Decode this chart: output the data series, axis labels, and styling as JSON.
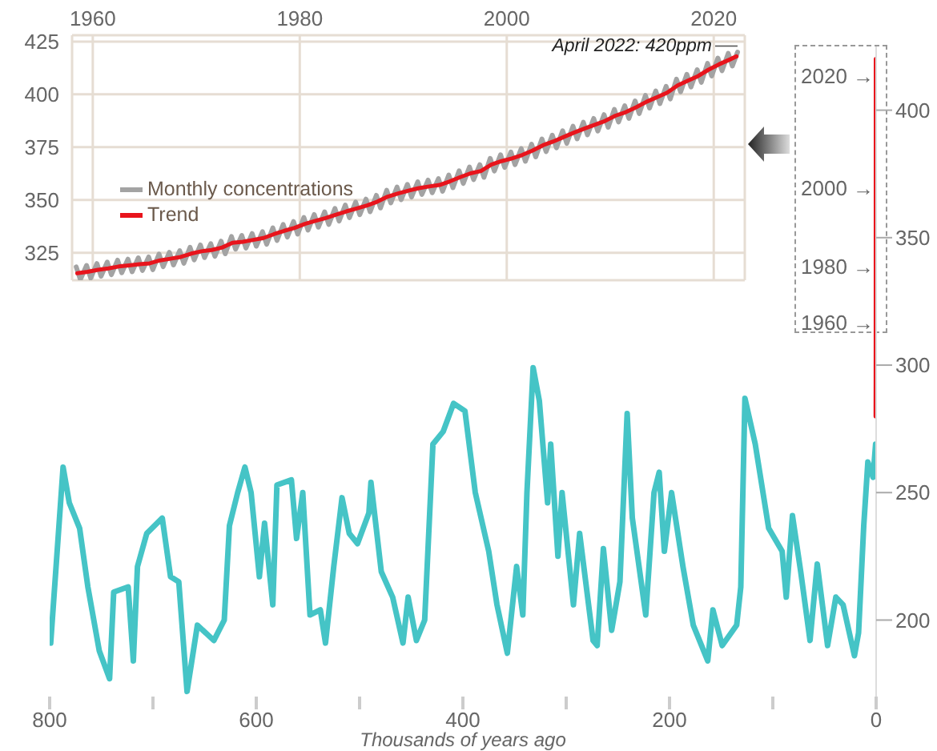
{
  "chart_data": [
    {
      "type": "line",
      "xlim": [
        1958,
        2023
      ],
      "xticks": [
        1960,
        1980,
        2000,
        2020
      ],
      "ylim": [
        312,
        428
      ],
      "yticks": [
        325,
        350,
        375,
        400,
        425
      ],
      "grid": true,
      "legend": "left",
      "series": [
        {
          "name": "Monthly concentrations",
          "color": "#a3a3a3",
          "x": [
            1958.4,
            1958.8,
            1959.4,
            1959.8,
            1960.4,
            1960.8,
            1961.4,
            1961.8,
            1962.4,
            1962.8,
            1963.4,
            1963.8,
            1964.4,
            1964.8,
            1965.4,
            1965.8,
            1966.4,
            1966.8,
            1967.4,
            1967.8,
            1968.4,
            1968.8,
            1969.4,
            1969.8,
            1970.4,
            1970.8,
            1971.4,
            1971.8,
            1972.4,
            1972.8,
            1973.4,
            1973.8,
            1974.4,
            1974.8,
            1975.4,
            1975.8,
            1976.4,
            1976.8,
            1977.4,
            1977.8,
            1978.4,
            1978.8,
            1979.4,
            1979.8,
            1980.4,
            1980.8,
            1981.4,
            1981.8,
            1982.4,
            1982.8,
            1983.4,
            1983.8,
            1984.4,
            1984.8,
            1985.4,
            1985.8,
            1986.4,
            1986.8,
            1987.4,
            1987.8,
            1988.4,
            1988.8,
            1989.4,
            1989.8,
            1990.4,
            1990.8,
            1991.4,
            1991.8,
            1992.4,
            1992.8,
            1993.4,
            1993.8,
            1994.4,
            1994.8,
            1995.4,
            1995.8,
            1996.4,
            1996.8,
            1997.4,
            1997.8,
            1998.4,
            1998.8,
            1999.4,
            1999.8,
            2000.4,
            2000.8,
            2001.4,
            2001.8,
            2002.4,
            2002.8,
            2003.4,
            2003.8,
            2004.4,
            2004.8,
            2005.4,
            2005.8,
            2006.4,
            2006.8,
            2007.4,
            2007.8,
            2008.4,
            2008.8,
            2009.4,
            2009.8,
            2010.4,
            2010.8,
            2011.4,
            2011.8,
            2012.4,
            2012.8,
            2013.4,
            2013.8,
            2014.4,
            2014.8,
            2015.4,
            2015.8,
            2016.4,
            2016.8,
            2017.4,
            2017.8,
            2018.4,
            2018.8,
            2019.4,
            2019.8,
            2020.4,
            2020.8,
            2021.4,
            2021.8,
            2022.3
          ],
          "values": [
            318.3,
            312.3,
            319,
            313,
            319.9,
            313.9,
            320.6,
            314.6,
            321.5,
            315.5,
            322,
            316,
            322.6,
            316.6,
            323,
            317,
            324.4,
            318.4,
            325.2,
            319.2,
            326,
            320,
            327.6,
            321.6,
            328.7,
            322.7,
            329.3,
            323.3,
            330.5,
            324.5,
            332.7,
            326.7,
            333.2,
            327.2,
            334.1,
            328.1,
            335,
            329,
            336.8,
            330.8,
            338.4,
            332.4,
            339.8,
            333.8,
            341.7,
            335.7,
            343.1,
            337.1,
            344.4,
            338.4,
            346,
            340,
            347.6,
            341.6,
            349,
            343,
            350.4,
            344.4,
            352.2,
            346.2,
            354.6,
            348.6,
            356.1,
            350.1,
            357.4,
            351.4,
            358.6,
            352.6,
            359.4,
            353.4,
            360.1,
            354.1,
            361.8,
            355.8,
            363.8,
            357.8,
            365.6,
            359.6,
            366.7,
            360.7,
            369.7,
            363.7,
            371.4,
            365.4,
            372.7,
            366.7,
            374.3,
            368.3,
            376.4,
            370.4,
            378.9,
            372.9,
            380.7,
            374.7,
            382.8,
            376.8,
            384.9,
            378.9,
            386.8,
            380.8,
            388.6,
            382.6,
            390.4,
            384.4,
            392.9,
            386.9,
            394.6,
            388.6,
            396.9,
            390.9,
            399.5,
            393.5,
            401.6,
            395.6,
            403.8,
            397.8,
            407.2,
            401.2,
            409.5,
            403.5,
            411.7,
            405.7,
            414.7,
            408.7,
            417.2,
            411.2,
            419.4,
            413.4,
            420
          ]
        },
        {
          "name": "Trend",
          "color": "#e8141c",
          "x": [
            1958.5,
            1959.5,
            1960.5,
            1961.5,
            1962.5,
            1963.5,
            1964.5,
            1965.5,
            1966.5,
            1967.5,
            1968.5,
            1969.5,
            1970.5,
            1971.5,
            1972.5,
            1973.5,
            1974.5,
            1975.5,
            1976.5,
            1977.5,
            1978.5,
            1979.5,
            1980.5,
            1981.5,
            1982.5,
            1983.5,
            1984.5,
            1985.5,
            1986.5,
            1987.5,
            1988.5,
            1989.5,
            1990.5,
            1991.5,
            1992.5,
            1993.5,
            1994.5,
            1995.5,
            1996.5,
            1997.5,
            1998.5,
            1999.5,
            2000.5,
            2001.5,
            2002.5,
            2003.5,
            2004.5,
            2005.5,
            2006.5,
            2007.5,
            2008.5,
            2009.5,
            2010.5,
            2011.5,
            2012.5,
            2013.5,
            2014.5,
            2015.5,
            2016.5,
            2017.5,
            2018.5,
            2019.5,
            2020.5,
            2021.5,
            2022.2
          ],
          "values": [
            315.3,
            316,
            316.9,
            317.6,
            318.5,
            319,
            319.6,
            320,
            321.4,
            322.2,
            323,
            324.6,
            325.7,
            326.3,
            327.5,
            329.7,
            330.2,
            331.1,
            332,
            333.8,
            335.4,
            336.8,
            338.7,
            340.1,
            341.4,
            343,
            344.6,
            346,
            347.4,
            349.2,
            351.6,
            353.1,
            354.4,
            355.6,
            356.4,
            357.1,
            358.8,
            360.8,
            362.6,
            363.7,
            366.7,
            368.4,
            369.7,
            371.3,
            373.4,
            375.9,
            377.7,
            379.8,
            381.9,
            383.8,
            385.6,
            387.4,
            389.9,
            391.6,
            393.9,
            396.5,
            398.6,
            400.8,
            404.2,
            406.5,
            408.7,
            411.7,
            414.2,
            416.4,
            418
          ]
        }
      ],
      "annotations": [
        {
          "text": "April 2022: 420ppm",
          "x": 2022.3,
          "y": 420
        }
      ]
    },
    {
      "type": "line",
      "xlabel": "Thousands of years ago",
      "xlim": [
        800,
        0
      ],
      "xticks": [
        800,
        {
          "value": 700,
          "label": null
        },
        600,
        {
          "value": 500,
          "label": null
        },
        400,
        {
          "value": 300,
          "label": null
        },
        200,
        {
          "value": 100,
          "label": null
        },
        0
      ],
      "ylim": [
        170,
        425
      ],
      "yticks": [
        200,
        250,
        300,
        350,
        400
      ],
      "grid": false,
      "legend": false,
      "series": [
        {
          "color": "#45c4c6",
          "x": [
            799,
            787,
            781,
            771,
            763,
            752,
            742,
            738,
            724,
            719,
            715,
            706,
            691,
            683,
            675,
            667,
            657,
            641,
            631,
            626,
            618,
            611,
            605,
            597,
            592,
            584,
            580,
            566,
            561,
            555,
            548,
            538,
            533,
            525,
            517,
            510,
            502,
            491,
            489,
            479,
            468,
            458,
            453,
            445,
            437,
            429,
            419,
            409,
            398,
            388,
            375,
            367,
            357,
            348,
            342,
            338,
            332,
            326,
            318,
            315,
            308,
            304,
            293,
            287,
            274,
            270,
            264,
            256,
            248,
            241,
            236,
            223,
            215,
            210,
            205,
            198,
            187,
            177,
            163,
            158,
            149,
            135,
            131,
            127,
            117,
            104,
            91,
            87,
            81,
            73,
            64,
            57,
            47,
            39,
            32,
            21,
            17,
            12,
            8,
            3,
            0.5
          ],
          "values": [
            191,
            260,
            246,
            236,
            213,
            188,
            177,
            211,
            213,
            184,
            221,
            234,
            240,
            217,
            215,
            172,
            198,
            192,
            200,
            237,
            250,
            260,
            250,
            217,
            238,
            206,
            253,
            255,
            232,
            250,
            202,
            204,
            191,
            221,
            248,
            234,
            230,
            242,
            254,
            219,
            209,
            191,
            209,
            192,
            200,
            269,
            274,
            285,
            282,
            250,
            227,
            206,
            187,
            221,
            202,
            250,
            299,
            286,
            246,
            269,
            225,
            250,
            206,
            234,
            192,
            190,
            228,
            196,
            215,
            281,
            240,
            202,
            250,
            258,
            227,
            250,
            221,
            198,
            184,
            204,
            190,
            198,
            213,
            287,
            269,
            236,
            227,
            209,
            241,
            219,
            192,
            222,
            190,
            209,
            206,
            186,
            195,
            237,
            262,
            256,
            269
          ]
        },
        {
          "color": "#e8141c",
          "x": [
            0.2,
            0.1,
            0.064,
            0.042,
            0.022,
            0.002,
            0
          ],
          "values": [
            280,
            295,
            316,
            339,
            370,
            414,
            420
          ]
        }
      ],
      "annotations": [
        "2020 →",
        "2000 →",
        "1980 →",
        "1960 →"
      ]
    }
  ]
}
